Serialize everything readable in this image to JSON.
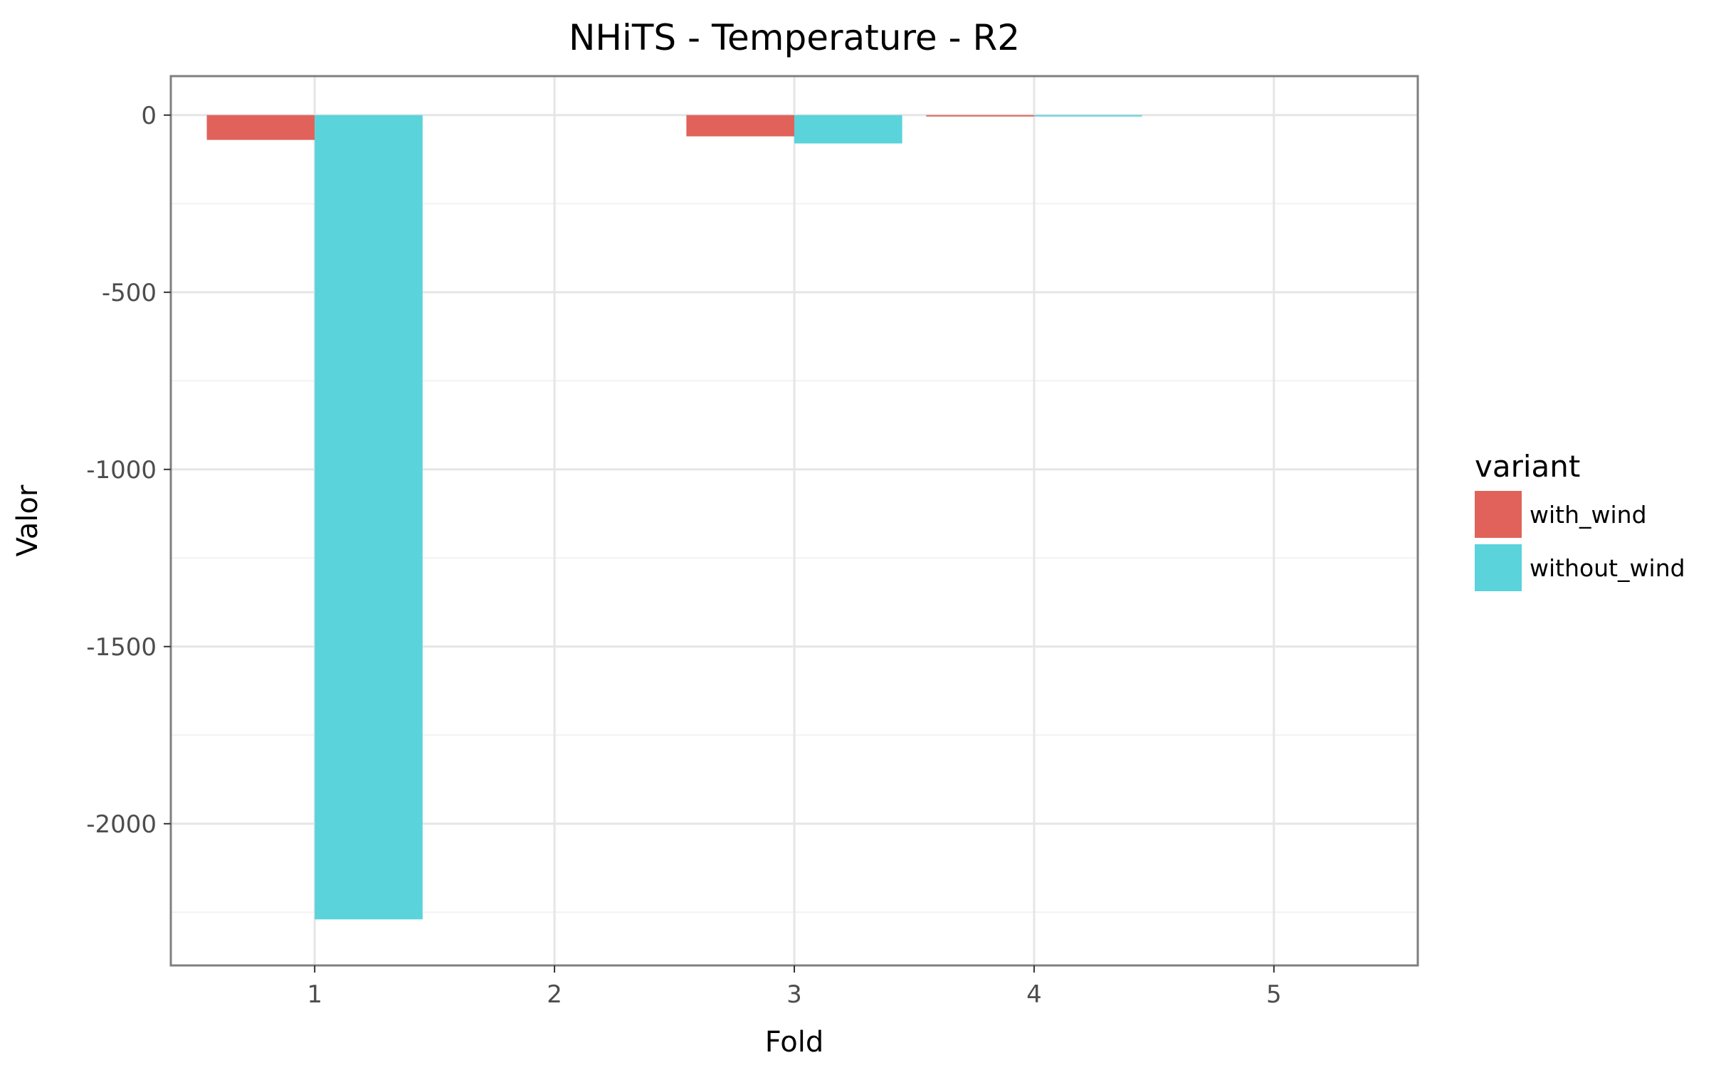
{
  "chart_data": {
    "type": "bar",
    "title": "NHiTS - Temperature - R2",
    "xlabel": "Fold",
    "ylabel": "Valor",
    "categories": [
      "1",
      "2",
      "3",
      "4",
      "5"
    ],
    "series": [
      {
        "name": "with_wind",
        "color": "#e0625a",
        "values": [
          -70,
          0,
          -60,
          -4,
          0
        ]
      },
      {
        "name": "without_wind",
        "color": "#5ad3db",
        "values": [
          -2270,
          0,
          -80,
          -4,
          0
        ]
      }
    ],
    "yticks": [
      0,
      -500,
      -1000,
      -1500,
      -2000
    ],
    "ytick_labels": [
      "0",
      "-500",
      "-1000",
      "-1500",
      "-2000"
    ],
    "ylim": [
      -2400,
      110
    ],
    "grid": true,
    "legend": {
      "title": "variant",
      "placement": "right"
    }
  }
}
